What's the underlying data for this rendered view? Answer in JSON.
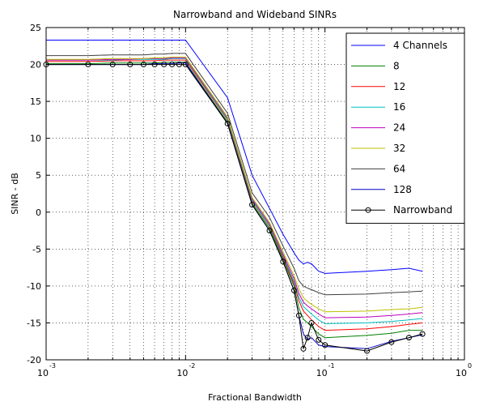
{
  "chart_data": {
    "type": "line",
    "title": "Narrowband and Wideband SINRs",
    "xlabel": "Fractional Bandwidth",
    "ylabel": "SINR - dB",
    "xscale": "log",
    "xlim": [
      0.001,
      1
    ],
    "ylim": [
      -20,
      25
    ],
    "yticks": [
      -20,
      -15,
      -10,
      -5,
      0,
      5,
      10,
      15,
      20,
      25
    ],
    "xtick_labels": [
      {
        "base": "10",
        "exp": "-3"
      },
      {
        "base": "10",
        "exp": "-2"
      },
      {
        "base": "10",
        "exp": "-1"
      },
      {
        "base": "10",
        "exp": "0"
      }
    ],
    "grid": true,
    "legend_position": "top-right",
    "x": [
      0.001,
      0.002,
      0.003,
      0.004,
      0.005,
      0.006,
      0.007,
      0.008,
      0.009,
      0.01,
      0.02,
      0.03,
      0.04,
      0.05,
      0.06,
      0.065,
      0.07,
      0.075,
      0.08,
      0.09,
      0.1,
      0.2,
      0.3,
      0.4,
      0.5
    ],
    "series": [
      {
        "name": "4 Channels",
        "color": "#0000ff",
        "marker": "none",
        "values": [
          23.3,
          23.3,
          23.3,
          23.3,
          23.3,
          23.3,
          23.3,
          23.3,
          23.3,
          23.3,
          15.5,
          5.0,
          0.5,
          -3.0,
          -5.5,
          -6.5,
          -7.0,
          -6.8,
          -7.0,
          -8.0,
          -8.3,
          -8.0,
          -7.8,
          -7.6,
          -8.0
        ]
      },
      {
        "name": "8",
        "color": "#008000",
        "marker": "none",
        "values": [
          20.1,
          20.1,
          20.2,
          20.2,
          20.2,
          20.2,
          20.3,
          20.3,
          20.3,
          20.3,
          12.2,
          1.2,
          -2.2,
          -6.4,
          -10.0,
          -13.0,
          -14.5,
          -15.0,
          -15.5,
          -16.5,
          -17.0,
          -16.7,
          -16.4,
          -16.0,
          -16.0
        ]
      },
      {
        "name": "12",
        "color": "#ff0000",
        "marker": "none",
        "values": [
          20.4,
          20.4,
          20.5,
          20.5,
          20.5,
          20.5,
          20.6,
          20.6,
          20.6,
          20.6,
          12.5,
          1.5,
          -1.9,
          -6.1,
          -9.7,
          -12.0,
          -13.4,
          -14.0,
          -14.6,
          -15.5,
          -16.0,
          -15.8,
          -15.5,
          -15.2,
          -15.0
        ]
      },
      {
        "name": "16",
        "color": "#00bfbf",
        "marker": "none",
        "values": [
          20.6,
          20.6,
          20.6,
          20.7,
          20.7,
          20.7,
          20.7,
          20.8,
          20.8,
          20.8,
          12.6,
          1.6,
          -1.8,
          -5.9,
          -9.4,
          -11.5,
          -12.8,
          -13.3,
          -13.8,
          -14.6,
          -15.1,
          -15.0,
          -14.8,
          -14.6,
          -14.4
        ]
      },
      {
        "name": "24",
        "color": "#bf00bf",
        "marker": "none",
        "values": [
          20.6,
          20.6,
          20.7,
          20.7,
          20.8,
          20.8,
          20.8,
          20.9,
          20.9,
          20.9,
          12.8,
          1.8,
          -1.6,
          -5.7,
          -9.0,
          -11.0,
          -12.2,
          -12.7,
          -13.1,
          -13.8,
          -14.3,
          -14.2,
          -14.0,
          -13.8,
          -13.6
        ]
      },
      {
        "name": "32",
        "color": "#bfbf00",
        "marker": "none",
        "values": [
          20.7,
          20.7,
          20.8,
          20.8,
          20.8,
          20.9,
          20.9,
          21.0,
          21.0,
          21.0,
          12.9,
          2.0,
          -1.4,
          -5.4,
          -8.6,
          -10.4,
          -11.6,
          -12.1,
          -12.5,
          -13.1,
          -13.5,
          -13.4,
          -13.2,
          -13.1,
          -12.9
        ]
      },
      {
        "name": "64",
        "color": "#404040",
        "marker": "none",
        "values": [
          21.2,
          21.2,
          21.3,
          21.3,
          21.3,
          21.4,
          21.4,
          21.5,
          21.5,
          21.5,
          13.4,
          2.6,
          -0.7,
          -4.6,
          -7.6,
          -9.3,
          -10.0,
          -10.3,
          -10.5,
          -10.9,
          -11.2,
          -11.1,
          -10.9,
          -10.8,
          -10.7
        ]
      },
      {
        "name": "128",
        "color": "#0000c0",
        "marker": "none",
        "values": [
          20.0,
          20.0,
          20.0,
          20.0,
          20.0,
          20.1,
          20.1,
          20.1,
          20.2,
          20.2,
          12.0,
          1.0,
          -2.5,
          -6.7,
          -10.6,
          -14.0,
          -16.5,
          -17.2,
          -17.0,
          -18.0,
          -18.2,
          -18.5,
          -17.5,
          -17.0,
          -16.6
        ]
      },
      {
        "name": "Narrowband",
        "color": "#000000",
        "marker": "circle",
        "values": [
          20.0,
          20.0,
          20.0,
          20.0,
          20.0,
          20.0,
          20.0,
          20.0,
          20.0,
          20.0,
          12.0,
          1.0,
          -2.5,
          -6.7,
          -10.6,
          -14.0,
          -18.5,
          -17.0,
          -15.0,
          -17.3,
          -18.0,
          -18.8,
          -17.6,
          -17.0,
          -16.5
        ]
      }
    ]
  }
}
